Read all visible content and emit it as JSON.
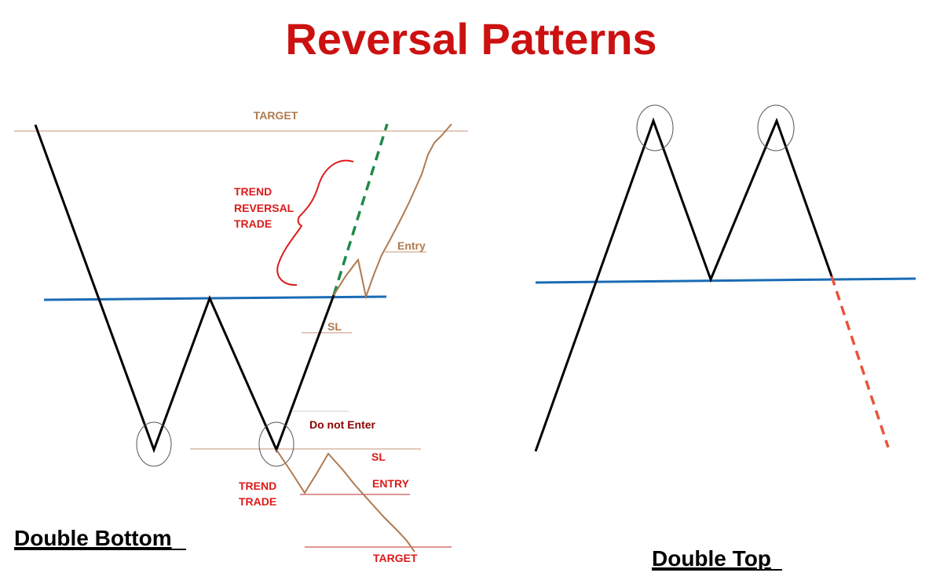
{
  "title": "Reversal Patterns",
  "colors": {
    "title": "#cc1111",
    "price_line": "#000000",
    "neckline": "#1a6bb5",
    "trade_path": "#b07a4f",
    "trade_label": "#b07a4f",
    "red_label": "#dd1a1a",
    "dark_red_label": "#8b0000",
    "projection_up": "#1e8a4a",
    "projection_down": "#e8543a",
    "circle": "#555555"
  },
  "double_bottom": {
    "caption": "Double Bottom",
    "labels": {
      "target_top": "TARGET",
      "trend_reversal_trade": [
        "TREND",
        "REVERSAL",
        "TRADE"
      ],
      "entry_upper": "Entry",
      "sl_upper": "SL",
      "do_not_enter": "Do not Enter",
      "sl_lower": "SL",
      "trend_trade": [
        "TREND",
        "TRADE"
      ],
      "entry_lower": "ENTRY",
      "target_bottom": "TARGET"
    }
  },
  "double_top": {
    "caption": "Double Top"
  }
}
